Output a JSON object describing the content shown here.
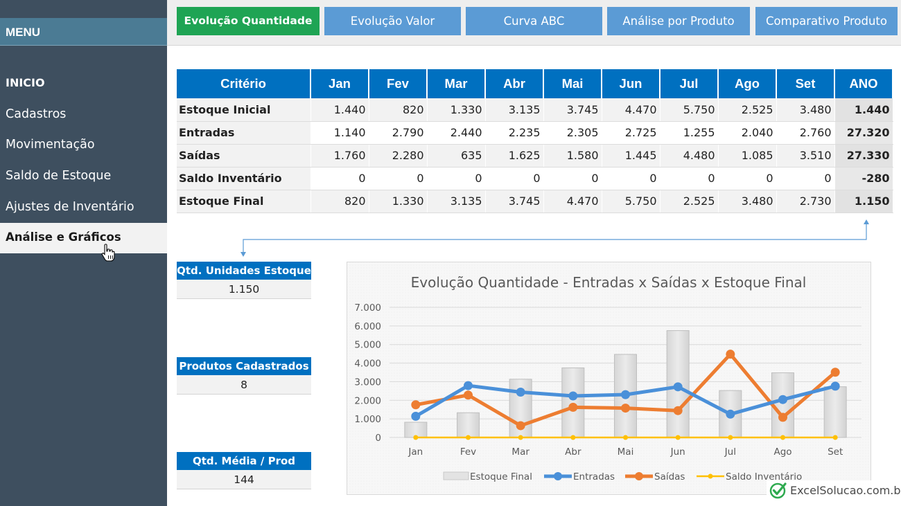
{
  "sidebar": {
    "menu_label": "MENU",
    "items": [
      {
        "label": "INICIO"
      },
      {
        "label": "Cadastros"
      },
      {
        "label": "Movimentação"
      },
      {
        "label": "Saldo de Estoque"
      },
      {
        "label": "Ajustes de Inventário"
      },
      {
        "label": "Análise e Gráficos"
      }
    ]
  },
  "tabs": [
    {
      "label": "Evolução Quantidade"
    },
    {
      "label": "Evolução Valor"
    },
    {
      "label": "Curva ABC"
    },
    {
      "label": "Análise por Produto"
    },
    {
      "label": "Comparativo Produto"
    }
  ],
  "table": {
    "headers": [
      "Critério",
      "Jan",
      "Fev",
      "Mar",
      "Abr",
      "Mai",
      "Jun",
      "Jul",
      "Ago",
      "Set",
      "ANO"
    ],
    "rows": [
      {
        "label": "Estoque Inicial",
        "values": [
          "1.440",
          "820",
          "1.330",
          "3.135",
          "3.745",
          "4.470",
          "5.750",
          "2.525",
          "3.480"
        ],
        "ano": "1.440"
      },
      {
        "label": "Entradas",
        "values": [
          "1.140",
          "2.790",
          "2.440",
          "2.235",
          "2.305",
          "2.725",
          "1.255",
          "2.040",
          "2.760"
        ],
        "ano": "27.320"
      },
      {
        "label": "Saídas",
        "values": [
          "1.760",
          "2.280",
          "635",
          "1.625",
          "1.580",
          "1.445",
          "4.480",
          "1.085",
          "3.510"
        ],
        "ano": "27.330"
      },
      {
        "label": "Saldo Inventário",
        "values": [
          "0",
          "0",
          "0",
          "0",
          "0",
          "0",
          "0",
          "0",
          "0"
        ],
        "ano": "-280"
      },
      {
        "label": "Estoque Final",
        "values": [
          "820",
          "1.330",
          "3.135",
          "3.745",
          "4.470",
          "5.750",
          "2.525",
          "3.480",
          "2.730"
        ],
        "ano": "1.150"
      }
    ]
  },
  "kpis": [
    {
      "label": "Qtd. Unidades Estoque",
      "value": "1.150"
    },
    {
      "label": "Produtos Cadastrados",
      "value": "8"
    },
    {
      "label": "Qtd. Média / Prod",
      "value": "144"
    }
  ],
  "brand": {
    "name": "ExcelSolucao.com.br"
  },
  "colors": {
    "sidebar": "#3e4f5f",
    "tab_blue": "#5b9bd5",
    "tab_active": "#1fa454",
    "table_header": "#0070c0",
    "entradas": "#4a90d9",
    "saidas": "#ed7d31",
    "saldo": "#ffc000",
    "estoque_bar": "#e0e0e0"
  },
  "chart_data": {
    "type": "bar",
    "title": "Evolução Quantidade - Entradas x Saídas x Estoque Final",
    "categories": [
      "Jan",
      "Fev",
      "Mar",
      "Abr",
      "Mai",
      "Jun",
      "Jul",
      "Ago",
      "Set"
    ],
    "ylim": [
      0,
      7000
    ],
    "yticks": [
      "0",
      "1.000",
      "2.000",
      "3.000",
      "4.000",
      "5.000",
      "6.000",
      "7.000"
    ],
    "ytick_values": [
      0,
      1000,
      2000,
      3000,
      4000,
      5000,
      6000,
      7000
    ],
    "legend_position": "bottom",
    "series": [
      {
        "name": "Estoque Final",
        "kind": "bar",
        "values": [
          820,
          1330,
          3135,
          3745,
          4470,
          5750,
          2525,
          3480,
          2730
        ]
      },
      {
        "name": "Entradas",
        "kind": "line",
        "values": [
          1140,
          2790,
          2440,
          2235,
          2305,
          2725,
          1255,
          2040,
          2760
        ]
      },
      {
        "name": "Saídas",
        "kind": "line",
        "values": [
          1760,
          2280,
          635,
          1625,
          1580,
          1445,
          4480,
          1085,
          3510
        ]
      },
      {
        "name": "Saldo Inventário",
        "kind": "line",
        "values": [
          0,
          0,
          0,
          0,
          0,
          0,
          0,
          0,
          0
        ]
      }
    ]
  }
}
